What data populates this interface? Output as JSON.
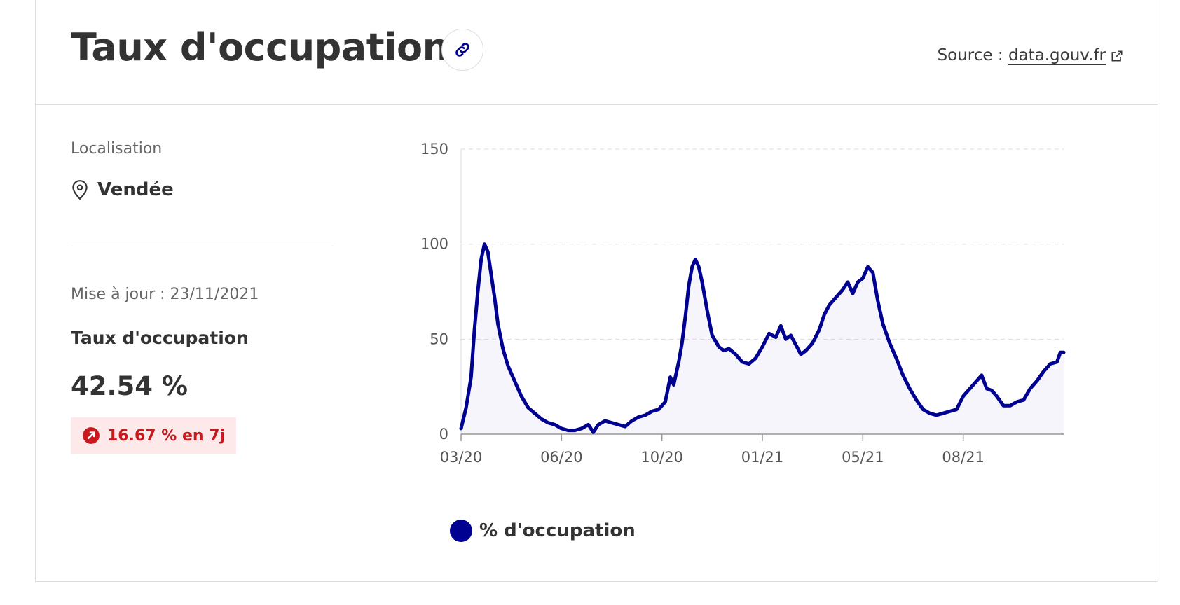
{
  "header": {
    "title": "Taux d'occupation",
    "source_prefix": "Source :",
    "source_link": "data.gouv.fr"
  },
  "icons": {
    "link": "link-icon",
    "external": "external-link-icon",
    "location": "map-pin-icon",
    "trend": "arrow-up-right-icon"
  },
  "colors": {
    "series": "#000091",
    "badge_bg": "#fde9e9",
    "badge_text": "#c9191e"
  },
  "sidebar": {
    "location_label": "Localisation",
    "location_value": "Vendée",
    "updated": "Mise à jour : 23/11/2021",
    "metric_label": "Taux d'occupation",
    "metric_value": "42.54 %",
    "trend": "16.67 % en 7j"
  },
  "chart_data": {
    "type": "area",
    "x_ticks": [
      "03/20",
      "06/20",
      "10/20",
      "01/21",
      "05/21",
      "08/21"
    ],
    "x_tick_months": [
      0,
      3,
      6,
      9,
      12,
      15
    ],
    "y_ticks": [
      0,
      50,
      100,
      150
    ],
    "ylim": [
      0,
      150
    ],
    "xlim_months": [
      0,
      18
    ],
    "grid": true,
    "legend_position": "bottom-left",
    "series": [
      {
        "name": "% d'occupation",
        "points": [
          [
            0,
            3
          ],
          [
            0.15,
            14
          ],
          [
            0.3,
            30
          ],
          [
            0.4,
            55
          ],
          [
            0.5,
            75
          ],
          [
            0.6,
            92
          ],
          [
            0.7,
            100
          ],
          [
            0.8,
            96
          ],
          [
            0.9,
            84
          ],
          [
            1.0,
            72
          ],
          [
            1.1,
            58
          ],
          [
            1.25,
            45
          ],
          [
            1.4,
            36
          ],
          [
            1.6,
            28
          ],
          [
            1.8,
            20
          ],
          [
            2.0,
            14
          ],
          [
            2.2,
            11
          ],
          [
            2.4,
            8
          ],
          [
            2.6,
            6
          ],
          [
            2.8,
            5
          ],
          [
            3.0,
            3
          ],
          [
            3.2,
            2
          ],
          [
            3.4,
            2
          ],
          [
            3.6,
            3
          ],
          [
            3.8,
            5
          ],
          [
            3.95,
            1
          ],
          [
            4.1,
            5
          ],
          [
            4.3,
            7
          ],
          [
            4.5,
            6
          ],
          [
            4.7,
            5
          ],
          [
            4.9,
            4
          ],
          [
            5.1,
            7
          ],
          [
            5.3,
            9
          ],
          [
            5.5,
            10
          ],
          [
            5.7,
            12
          ],
          [
            5.9,
            13
          ],
          [
            6.1,
            17
          ],
          [
            6.25,
            30
          ],
          [
            6.35,
            26
          ],
          [
            6.5,
            38
          ],
          [
            6.6,
            48
          ],
          [
            6.7,
            62
          ],
          [
            6.8,
            78
          ],
          [
            6.9,
            88
          ],
          [
            7.0,
            92
          ],
          [
            7.1,
            88
          ],
          [
            7.2,
            80
          ],
          [
            7.35,
            65
          ],
          [
            7.5,
            52
          ],
          [
            7.7,
            46
          ],
          [
            7.85,
            44
          ],
          [
            8.0,
            45
          ],
          [
            8.2,
            42
          ],
          [
            8.4,
            38
          ],
          [
            8.6,
            37
          ],
          [
            8.8,
            40
          ],
          [
            9.0,
            46
          ],
          [
            9.2,
            53
          ],
          [
            9.4,
            51
          ],
          [
            9.55,
            57
          ],
          [
            9.7,
            50
          ],
          [
            9.85,
            52
          ],
          [
            10.0,
            47
          ],
          [
            10.15,
            42
          ],
          [
            10.3,
            44
          ],
          [
            10.5,
            48
          ],
          [
            10.7,
            55
          ],
          [
            10.85,
            63
          ],
          [
            11.0,
            68
          ],
          [
            11.2,
            72
          ],
          [
            11.4,
            76
          ],
          [
            11.55,
            80
          ],
          [
            11.7,
            74
          ],
          [
            11.85,
            80
          ],
          [
            12.0,
            82
          ],
          [
            12.15,
            88
          ],
          [
            12.3,
            85
          ],
          [
            12.45,
            70
          ],
          [
            12.6,
            58
          ],
          [
            12.8,
            48
          ],
          [
            13.0,
            40
          ],
          [
            13.2,
            31
          ],
          [
            13.4,
            24
          ],
          [
            13.6,
            18
          ],
          [
            13.8,
            13
          ],
          [
            14.0,
            11
          ],
          [
            14.2,
            10
          ],
          [
            14.4,
            11
          ],
          [
            14.6,
            12
          ],
          [
            14.8,
            13
          ],
          [
            15.0,
            20
          ],
          [
            15.2,
            24
          ],
          [
            15.4,
            28
          ],
          [
            15.55,
            31
          ],
          [
            15.7,
            24
          ],
          [
            15.85,
            23
          ],
          [
            16.0,
            20
          ],
          [
            16.2,
            15
          ],
          [
            16.4,
            15
          ],
          [
            16.6,
            17
          ],
          [
            16.8,
            18
          ],
          [
            17.0,
            24
          ],
          [
            17.2,
            28
          ],
          [
            17.4,
            33
          ],
          [
            17.6,
            37
          ],
          [
            17.8,
            38
          ],
          [
            17.9,
            43
          ],
          [
            18.0,
            43
          ]
        ]
      }
    ]
  }
}
